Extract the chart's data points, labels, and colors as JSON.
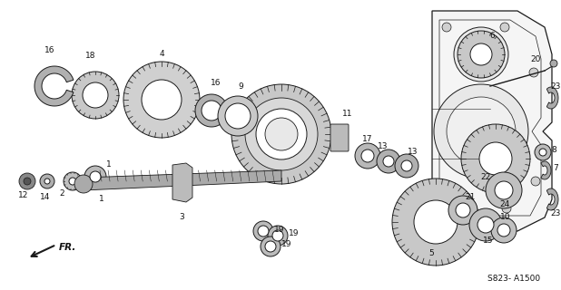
{
  "bg_color": "#ffffff",
  "line_color": "#1a1a1a",
  "text_color": "#111111",
  "diagram_code": "S823- A1500",
  "fr_label": "FR.",
  "font_size": 6.5,
  "figsize": [
    6.18,
    3.2
  ],
  "dpi": 100
}
